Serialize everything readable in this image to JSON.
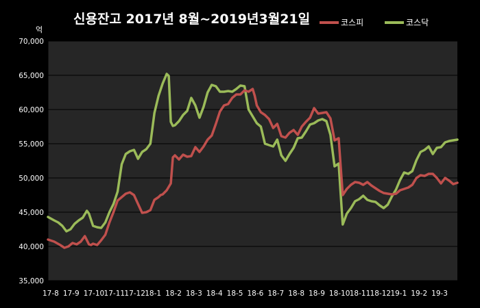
{
  "chart_data": {
    "type": "line",
    "title": "신용잔고 2017년 8월~2019년3월21일",
    "unit_label": "억",
    "ylim": [
      35000,
      70000
    ],
    "y_ticks": [
      "70,000",
      "65,000",
      "60,000",
      "55,000",
      "50,000",
      "45,000",
      "40,000",
      "35,000"
    ],
    "y_tick_values": [
      70000,
      65000,
      60000,
      55000,
      50000,
      45000,
      40000,
      35000
    ],
    "x_ticks": [
      "17-8",
      "17-9",
      "17-10",
      "17-11",
      "17-12",
      "18-1",
      "18-2",
      "18-3",
      "18-4",
      "18-5",
      "18-6",
      "18-7",
      "18-8",
      "18-9",
      "18-10",
      "18-11",
      "18-12",
      "19-1",
      "19-2",
      "19-3"
    ],
    "x_range": [
      0,
      20
    ],
    "grid": true,
    "legend_position": "top-right",
    "series": [
      {
        "name": "코스피",
        "color": "#c0504d",
        "x": [
          0,
          0.3,
          0.6,
          0.8,
          1.0,
          1.2,
          1.4,
          1.6,
          1.8,
          2.0,
          2.1,
          2.2,
          2.4,
          2.6,
          2.8,
          3.0,
          3.2,
          3.4,
          3.6,
          3.8,
          4.0,
          4.2,
          4.4,
          4.6,
          4.8,
          5.0,
          5.2,
          5.4,
          5.5,
          5.6,
          5.8,
          6.0,
          6.1,
          6.2,
          6.4,
          6.6,
          6.8,
          7.0,
          7.2,
          7.4,
          7.6,
          7.8,
          8.0,
          8.2,
          8.4,
          8.6,
          8.8,
          9.0,
          9.2,
          9.4,
          9.6,
          9.8,
          10.0,
          10.1,
          10.2,
          10.4,
          10.6,
          10.8,
          11.0,
          11.2,
          11.4,
          11.6,
          11.8,
          12.0,
          12.2,
          12.4,
          12.6,
          12.8,
          13.0,
          13.2,
          13.4,
          13.6,
          13.8,
          14.0,
          14.2,
          14.4,
          14.6,
          14.8,
          15.0,
          15.2,
          15.4,
          15.6,
          15.8,
          16.0,
          16.2,
          16.4,
          16.6,
          16.8,
          17.0,
          17.2,
          17.4,
          17.6,
          17.8,
          18.0,
          18.2,
          18.4,
          18.6,
          18.8,
          19.0,
          19.2,
          19.4,
          19.6,
          19.8,
          20.0
        ],
        "values": [
          41000,
          40700,
          40200,
          39800,
          40000,
          40500,
          40300,
          40700,
          41500,
          40300,
          40200,
          40400,
          40200,
          40900,
          41700,
          43500,
          45000,
          46700,
          47200,
          47700,
          47900,
          47500,
          46200,
          44900,
          45000,
          45300,
          46800,
          47200,
          47500,
          47600,
          48200,
          49200,
          53000,
          53300,
          52700,
          53400,
          53100,
          53200,
          54500,
          53800,
          54600,
          55600,
          56200,
          57900,
          59700,
          60600,
          60800,
          61700,
          62200,
          62200,
          62800,
          62600,
          63000,
          62000,
          60600,
          59600,
          59200,
          58600,
          57300,
          57900,
          56100,
          55900,
          56600,
          57000,
          56300,
          57500,
          58200,
          58800,
          60200,
          59400,
          59500,
          59600,
          58700,
          55500,
          55800,
          47500,
          48400,
          49000,
          49400,
          49300,
          49000,
          49400,
          48900,
          48500,
          48100,
          47800,
          47700,
          47600,
          47700,
          48200,
          48400,
          48600,
          49000,
          50000,
          50400,
          50300,
          50600,
          50600,
          50000,
          49200,
          50000,
          49600,
          49100,
          49300
        ]
      },
      {
        "name": "코스닥",
        "color": "#9bbb59",
        "x": [
          0,
          0.3,
          0.5,
          0.7,
          0.9,
          1.1,
          1.3,
          1.5,
          1.7,
          1.8,
          1.9,
          2.0,
          2.2,
          2.4,
          2.6,
          2.8,
          3.0,
          3.2,
          3.4,
          3.6,
          3.8,
          4.0,
          4.2,
          4.4,
          4.6,
          4.8,
          5.0,
          5.2,
          5.4,
          5.6,
          5.8,
          5.9,
          6.0,
          6.1,
          6.2,
          6.4,
          6.6,
          6.8,
          7.0,
          7.2,
          7.4,
          7.6,
          7.8,
          8.0,
          8.2,
          8.4,
          8.6,
          8.8,
          9.0,
          9.2,
          9.4,
          9.6,
          9.8,
          10.0,
          10.2,
          10.4,
          10.6,
          10.8,
          11.0,
          11.2,
          11.4,
          11.6,
          11.8,
          12.0,
          12.2,
          12.4,
          12.6,
          12.8,
          13.0,
          13.2,
          13.4,
          13.6,
          13.8,
          14.0,
          14.2,
          14.4,
          14.6,
          14.8,
          15.0,
          15.2,
          15.4,
          15.6,
          15.8,
          16.0,
          16.2,
          16.4,
          16.6,
          16.8,
          17.0,
          17.2,
          17.4,
          17.6,
          17.8,
          18.0,
          18.2,
          18.4,
          18.6,
          18.8,
          19.0,
          19.2,
          19.4,
          19.6,
          19.8,
          20.0
        ],
        "values": [
          44300,
          43800,
          43500,
          43000,
          42200,
          42500,
          43300,
          43800,
          44200,
          44700,
          45200,
          44800,
          43000,
          42800,
          42700,
          43500,
          45000,
          46200,
          48000,
          52000,
          53500,
          53900,
          54100,
          52800,
          53800,
          54200,
          55000,
          59500,
          62000,
          63800,
          65200,
          64900,
          58200,
          57600,
          57700,
          58300,
          59200,
          59800,
          61700,
          60600,
          58800,
          60400,
          62500,
          63600,
          63400,
          62600,
          62600,
          62700,
          62600,
          63000,
          63500,
          63400,
          60000,
          59000,
          58000,
          57500,
          55000,
          54800,
          54600,
          55600,
          53300,
          52500,
          53500,
          54400,
          55800,
          55900,
          56800,
          57800,
          58000,
          58400,
          58600,
          58300,
          56300,
          51700,
          52100,
          43200,
          44800,
          45600,
          46600,
          46900,
          47400,
          46800,
          46600,
          46500,
          46000,
          45600,
          46100,
          47300,
          48300,
          49700,
          50800,
          50600,
          51000,
          52600,
          53800,
          54100,
          54600,
          53500,
          54400,
          54500,
          55200,
          55400,
          55500,
          55600
        ]
      }
    ]
  }
}
